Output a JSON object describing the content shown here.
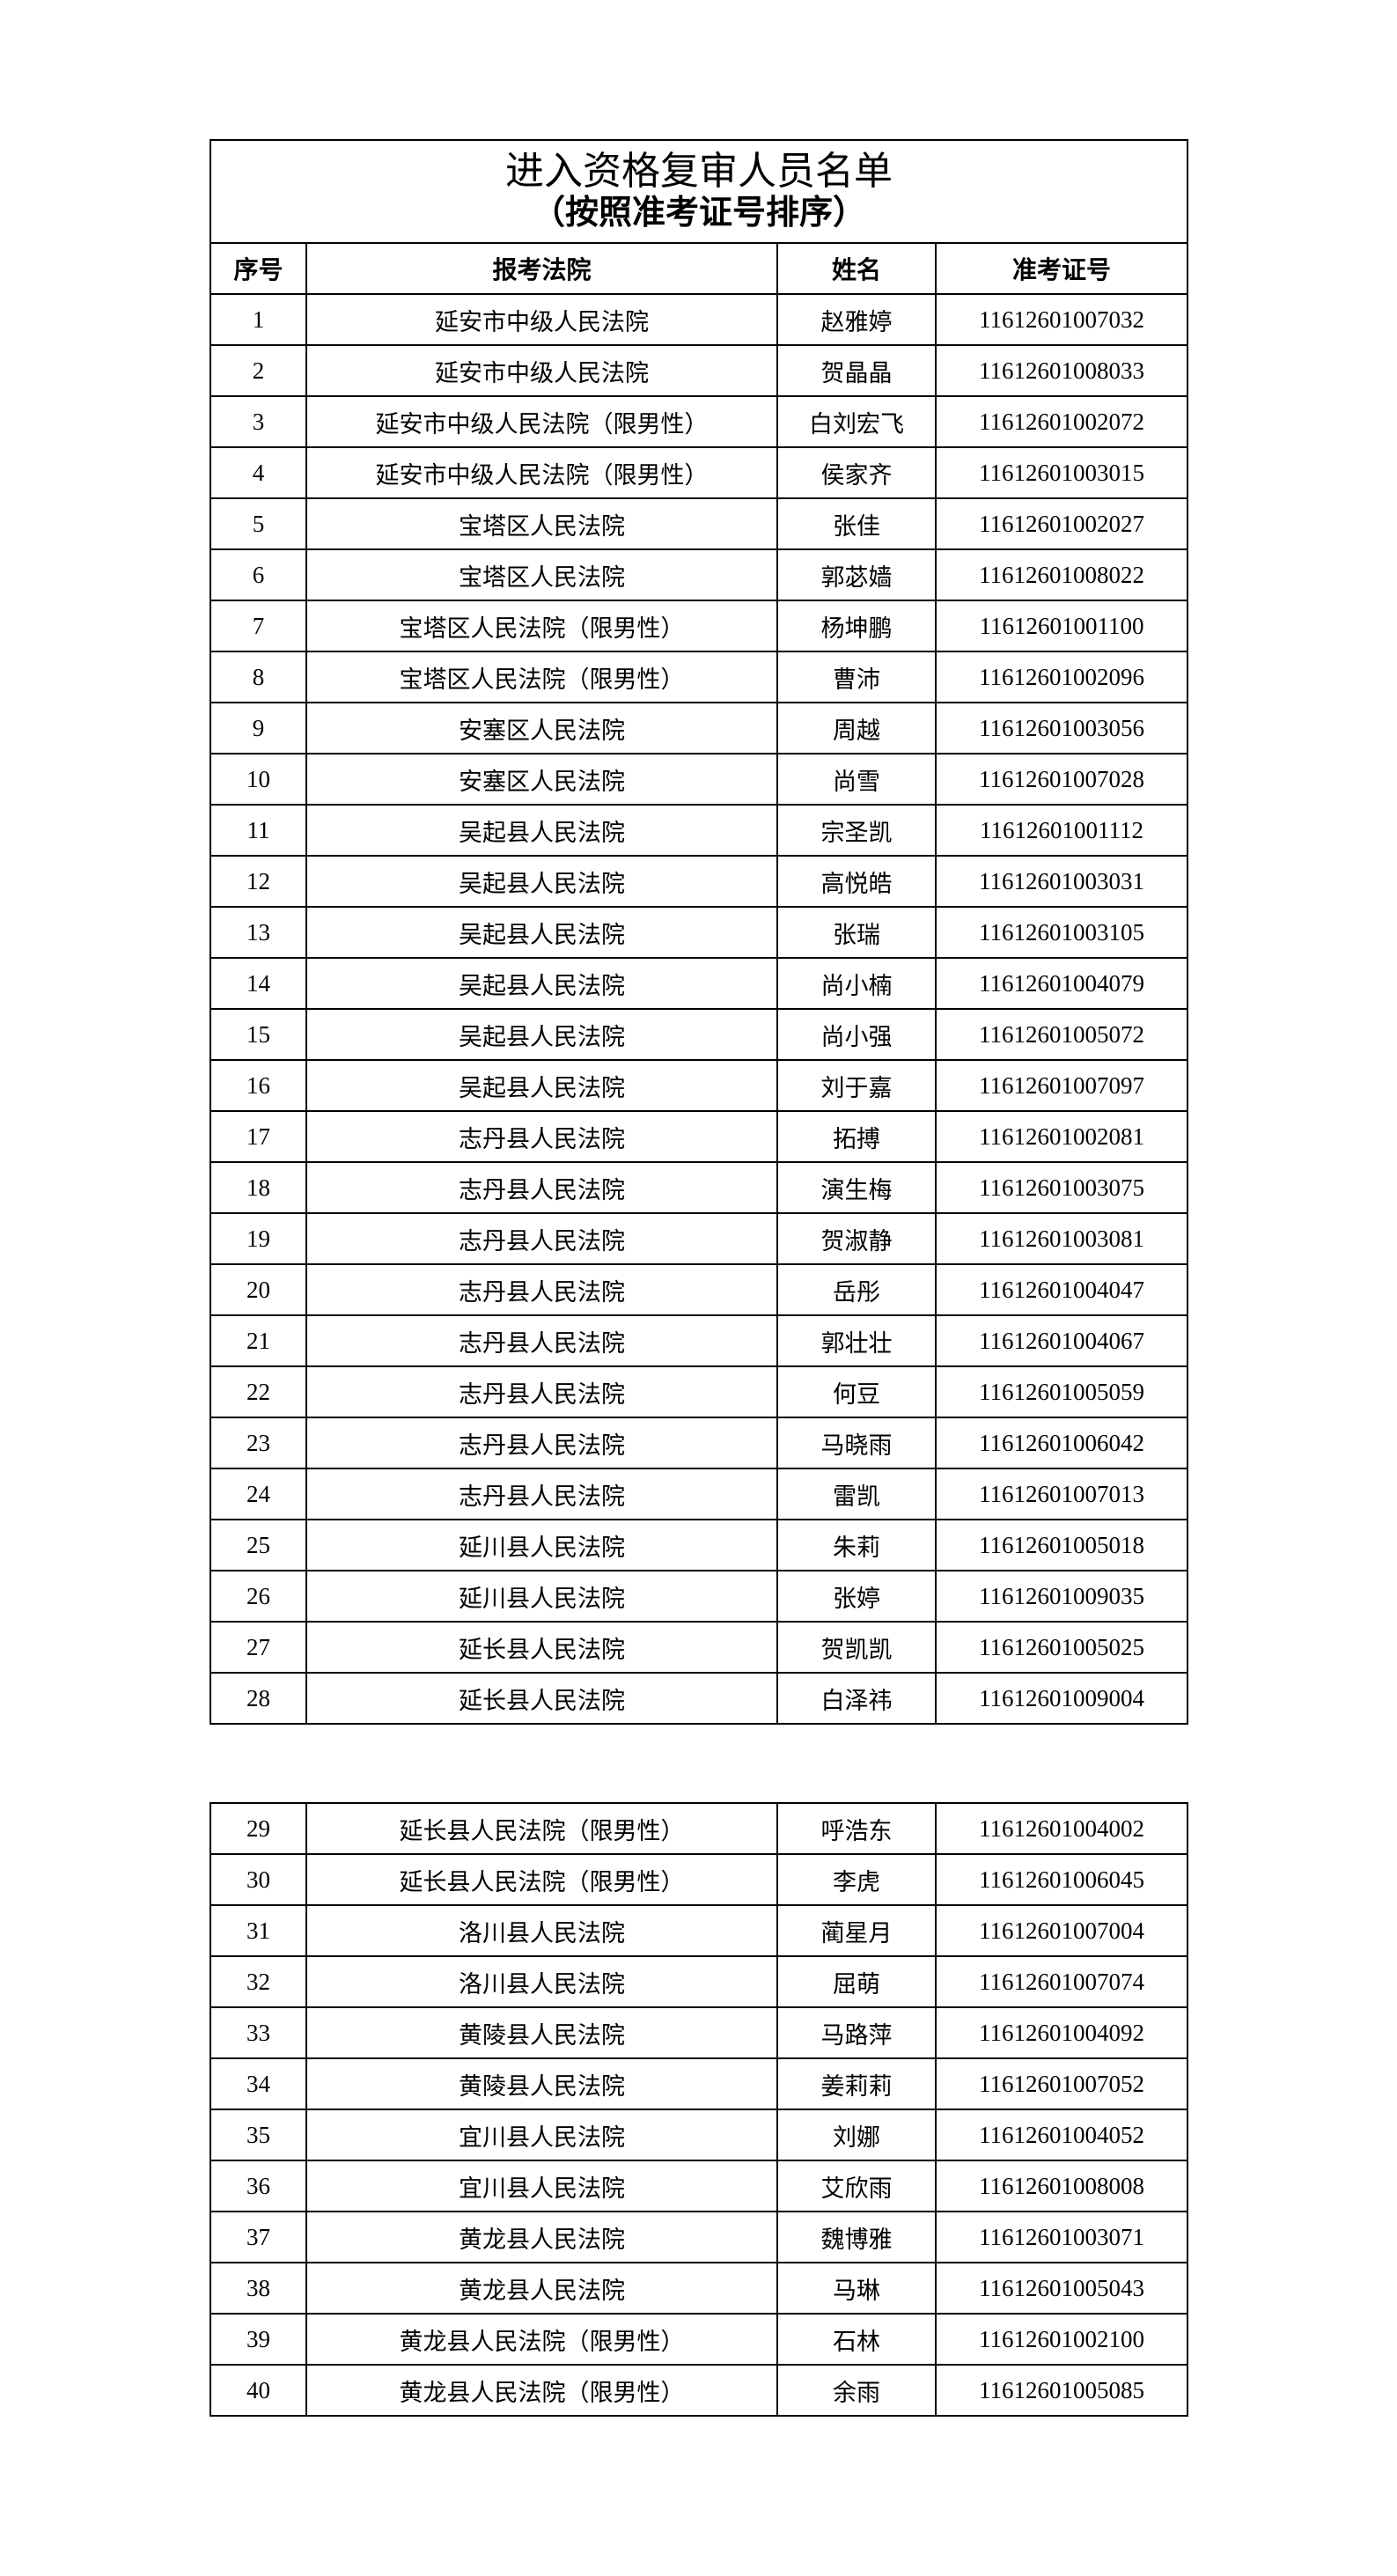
{
  "document": {
    "title": "进入资格复审人员名单",
    "subtitle": "（按照准考证号排序）",
    "headers": [
      "序号",
      "报考法院",
      "姓名",
      "准考证号"
    ],
    "rows": [
      [
        "1",
        "延安市中级人民法院",
        "赵雅婷",
        "11612601007032"
      ],
      [
        "2",
        "延安市中级人民法院",
        "贺晶晶",
        "11612601008033"
      ],
      [
        "3",
        "延安市中级人民法院（限男性）",
        "白刘宏飞",
        "11612601002072"
      ],
      [
        "4",
        "延安市中级人民法院（限男性）",
        "侯家齐",
        "11612601003015"
      ],
      [
        "5",
        "宝塔区人民法院",
        "张佳",
        "11612601002027"
      ],
      [
        "6",
        "宝塔区人民法院",
        "郭苾嫱",
        "11612601008022"
      ],
      [
        "7",
        "宝塔区人民法院（限男性）",
        "杨坤鹏",
        "11612601001100"
      ],
      [
        "8",
        "宝塔区人民法院（限男性）",
        "曹沛",
        "11612601002096"
      ],
      [
        "9",
        "安塞区人民法院",
        "周越",
        "11612601003056"
      ],
      [
        "10",
        "安塞区人民法院",
        "尚雪",
        "11612601007028"
      ],
      [
        "11",
        "吴起县人民法院",
        "宗圣凯",
        "11612601001112"
      ],
      [
        "12",
        "吴起县人民法院",
        "高悦皓",
        "11612601003031"
      ],
      [
        "13",
        "吴起县人民法院",
        "张瑞",
        "11612601003105"
      ],
      [
        "14",
        "吴起县人民法院",
        "尚小楠",
        "11612601004079"
      ],
      [
        "15",
        "吴起县人民法院",
        "尚小强",
        "11612601005072"
      ],
      [
        "16",
        "吴起县人民法院",
        "刘于嘉",
        "11612601007097"
      ],
      [
        "17",
        "志丹县人民法院",
        "拓搏",
        "11612601002081"
      ],
      [
        "18",
        "志丹县人民法院",
        "演生梅",
        "11612601003075"
      ],
      [
        "19",
        "志丹县人民法院",
        "贺淑静",
        "11612601003081"
      ],
      [
        "20",
        "志丹县人民法院",
        "岳彤",
        "11612601004047"
      ],
      [
        "21",
        "志丹县人民法院",
        "郭壮壮",
        "11612601004067"
      ],
      [
        "22",
        "志丹县人民法院",
        "何豆",
        "11612601005059"
      ],
      [
        "23",
        "志丹县人民法院",
        "马晓雨",
        "11612601006042"
      ],
      [
        "24",
        "志丹县人民法院",
        "雷凯",
        "11612601007013"
      ],
      [
        "25",
        "延川县人民法院",
        "朱莉",
        "11612601005018"
      ],
      [
        "26",
        "延川县人民法院",
        "张婷",
        "11612601009035"
      ],
      [
        "27",
        "延长县人民法院",
        "贺凯凯",
        "11612601005025"
      ],
      [
        "28",
        "延长县人民法院",
        "白泽祎",
        "11612601009004"
      ],
      [
        "29",
        "延长县人民法院（限男性）",
        "呼浩东",
        "11612601004002"
      ],
      [
        "30",
        "延长县人民法院（限男性）",
        "李虎",
        "11612601006045"
      ],
      [
        "31",
        "洛川县人民法院",
        "蔺星月",
        "11612601007004"
      ],
      [
        "32",
        "洛川县人民法院",
        "屈萌",
        "11612601007074"
      ],
      [
        "33",
        "黄陵县人民法院",
        "马路萍",
        "11612601004092"
      ],
      [
        "34",
        "黄陵县人民法院",
        "姜莉莉",
        "11612601007052"
      ],
      [
        "35",
        "宜川县人民法院",
        "刘娜",
        "11612601004052"
      ],
      [
        "36",
        "宜川县人民法院",
        "艾欣雨",
        "11612601008008"
      ],
      [
        "37",
        "黄龙县人民法院",
        "魏博雅",
        "11612601003071"
      ],
      [
        "38",
        "黄龙县人民法院",
        "马琳",
        "11612601005043"
      ],
      [
        "39",
        "黄龙县人民法院（限男性）",
        "石林",
        "11612601002100"
      ],
      [
        "40",
        "黄龙县人民法院（限男性）",
        "余雨",
        "11612601005085"
      ]
    ]
  }
}
